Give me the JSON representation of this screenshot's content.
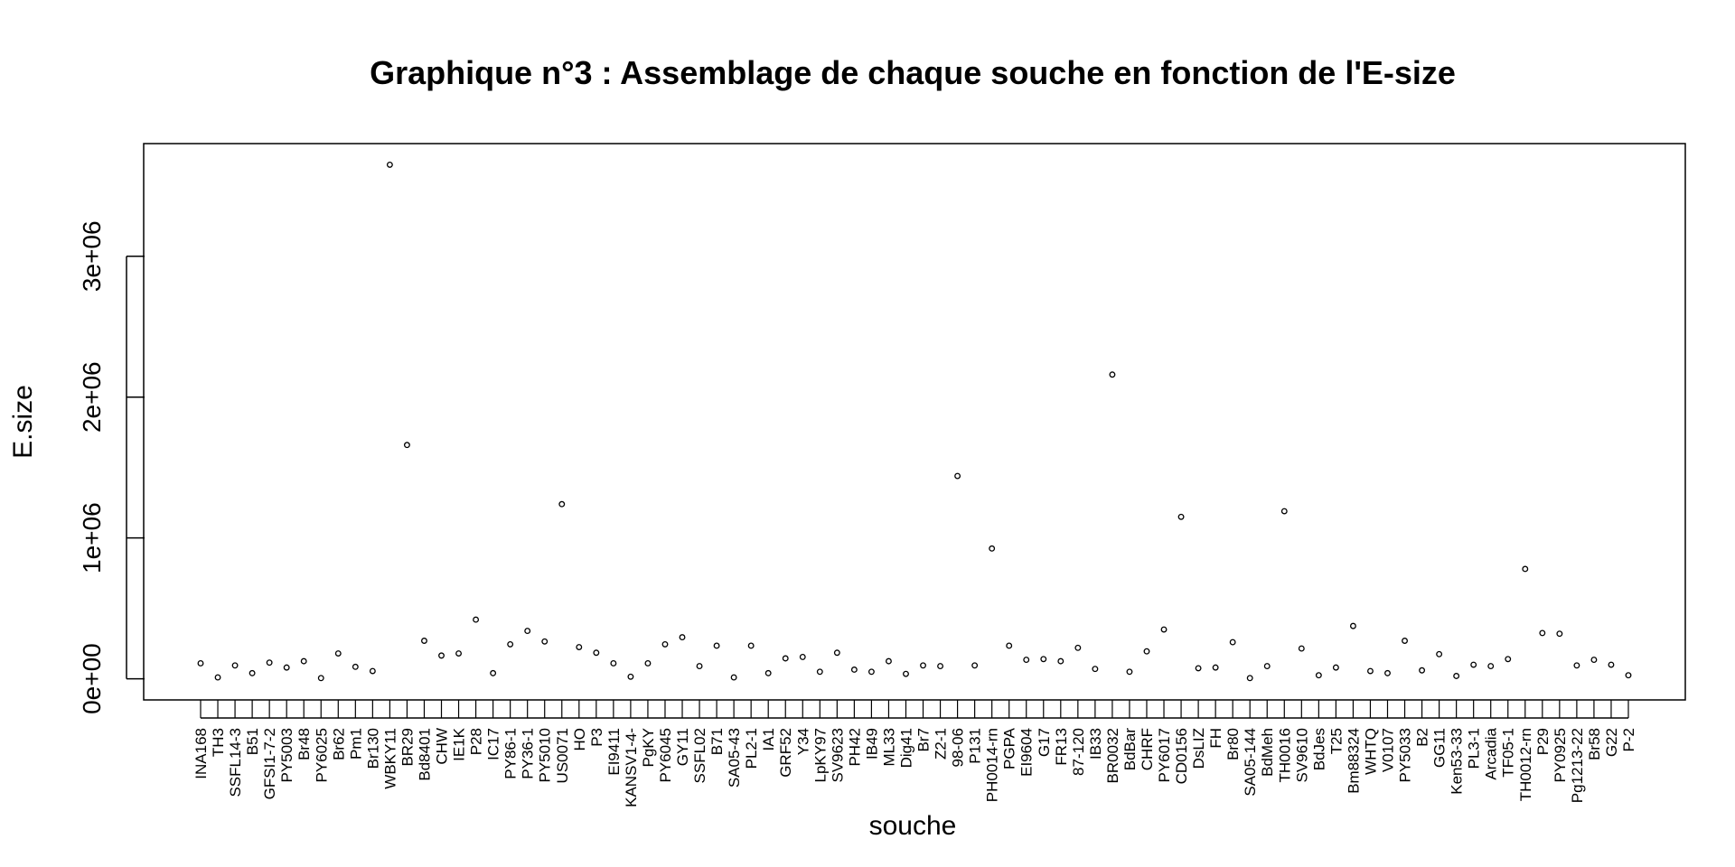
{
  "chart_data": {
    "type": "scatter",
    "title": "Graphique n°3 : Assemblage de chaque souche en fonction de l'E-size",
    "xlabel": "souche",
    "ylabel": "E.size",
    "y_ticks": [
      0,
      1000000,
      2000000,
      3000000
    ],
    "y_tick_labels": [
      "0e+00",
      "1e+06",
      "2e+06",
      "3e+06"
    ],
    "ylim": [
      -150000,
      3800000
    ],
    "grid": false,
    "legend": "none",
    "marker": "open-circle",
    "categories": [
      "INA168",
      "TH3",
      "SSFL14-3",
      "B51",
      "GFSI1-7-2",
      "PY5003",
      "Br48",
      "PY6025",
      "Br62",
      "Pm1",
      "Br130",
      "WBKY11",
      "BR29",
      "Bd8401",
      "CHW",
      "IE1K",
      "P28",
      "IC17",
      "PY86-1",
      "PY36-1",
      "PY5010",
      "US0071",
      "HO",
      "P3",
      "EI9411",
      "KANSV1-4-",
      "PgKY",
      "PY6045",
      "GY11",
      "SSFL02",
      "B71",
      "SA05-43",
      "PL2-1",
      "IA1",
      "GRF52",
      "Y34",
      "LpKY97",
      "SV9623",
      "PH42",
      "IB49",
      "ML33",
      "Dig41",
      "Br7",
      "Z2-1",
      "98-06",
      "P131",
      "PH0014-rn",
      "PGPA",
      "EI9604",
      "G17",
      "FR13",
      "87-120",
      "IB33",
      "BR0032",
      "BdBar",
      "CHRF",
      "PY6017",
      "CD0156",
      "DsLIZ",
      "FH",
      "Br80",
      "SA05-144",
      "BdMeh",
      "TH0016",
      "SV9610",
      "BdJes",
      "T25",
      "Bm88324",
      "WHTQ",
      "V0107",
      "PY5033",
      "B2",
      "GG11",
      "Ken53-33",
      "PL3-1",
      "Arcadia",
      "TF05-1",
      "TH0012-rn",
      "P29",
      "PY0925",
      "Pg1213-22",
      "Br58",
      "G22",
      "P-2"
    ],
    "values": [
      110000,
      10000,
      95000,
      40000,
      115000,
      80000,
      125000,
      5000,
      180000,
      85000,
      55000,
      3650000,
      1660000,
      270000,
      165000,
      180000,
      420000,
      40000,
      245000,
      340000,
      265000,
      1240000,
      225000,
      185000,
      110000,
      15000,
      110000,
      245000,
      295000,
      90000,
      235000,
      10000,
      235000,
      40000,
      145000,
      155000,
      50000,
      185000,
      65000,
      50000,
      125000,
      35000,
      95000,
      90000,
      1440000,
      95000,
      925000,
      235000,
      135000,
      140000,
      125000,
      220000,
      70000,
      2160000,
      50000,
      195000,
      350000,
      1150000,
      75000,
      80000,
      260000,
      5000,
      90000,
      1190000,
      215000,
      25000,
      80000,
      375000,
      55000,
      40000,
      270000,
      60000,
      175000,
      20000,
      100000,
      90000,
      140000,
      780000,
      325000,
      320000,
      95000,
      135000,
      100000,
      25000
    ]
  }
}
